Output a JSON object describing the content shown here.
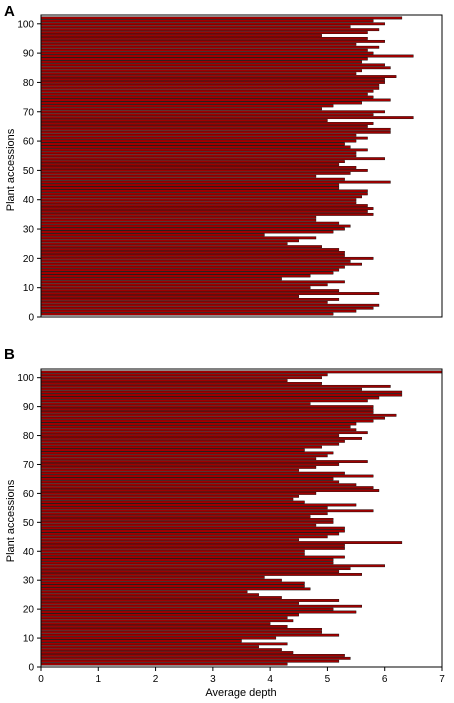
{
  "chart_data": [
    {
      "panel_label": "A",
      "type": "bar",
      "orientation": "horizontal",
      "ylabel": "Plant accessions",
      "xlabel": "",
      "xlim": [
        0,
        7
      ],
      "ylim": [
        0,
        103
      ],
      "xticks_shown": false,
      "yticks": [
        0,
        10,
        20,
        30,
        40,
        50,
        60,
        70,
        80,
        90,
        100
      ],
      "bar_color": "#a00000",
      "categories": [
        1,
        2,
        3,
        4,
        5,
        6,
        7,
        8,
        9,
        10,
        11,
        12,
        13,
        14,
        15,
        16,
        17,
        18,
        19,
        20,
        21,
        22,
        23,
        24,
        25,
        26,
        27,
        28,
        29,
        30,
        31,
        32,
        33,
        34,
        35,
        36,
        37,
        38,
        39,
        40,
        41,
        42,
        43,
        44,
        45,
        46,
        47,
        48,
        49,
        50,
        51,
        52,
        53,
        54,
        55,
        56,
        57,
        58,
        59,
        60,
        61,
        62,
        63,
        64,
        65,
        66,
        67,
        68,
        69,
        70,
        71,
        72,
        73,
        74,
        75,
        76,
        77,
        78,
        79,
        80,
        81,
        82,
        83,
        84,
        85,
        86,
        87,
        88,
        89,
        90,
        91,
        92,
        93,
        94,
        95,
        96,
        97,
        98,
        99,
        100,
        101,
        102
      ],
      "values": [
        5.1,
        5.5,
        5.8,
        5.9,
        5.0,
        5.2,
        4.5,
        5.9,
        5.2,
        4.7,
        5.0,
        5.3,
        4.2,
        4.7,
        5.1,
        5.2,
        5.3,
        5.6,
        5.4,
        5.8,
        5.3,
        5.3,
        5.2,
        4.9,
        4.3,
        4.5,
        4.8,
        3.9,
        5.1,
        5.3,
        5.4,
        5.2,
        4.8,
        4.8,
        5.8,
        5.7,
        5.8,
        5.7,
        5.5,
        5.5,
        5.6,
        5.7,
        5.7,
        5.2,
        5.2,
        6.1,
        5.3,
        4.8,
        5.4,
        5.7,
        5.5,
        5.2,
        5.3,
        6.0,
        5.5,
        5.5,
        5.7,
        5.4,
        5.3,
        5.5,
        5.7,
        5.5,
        6.1,
        6.1,
        5.7,
        5.8,
        5.0,
        6.5,
        5.8,
        6.0,
        4.9,
        5.1,
        5.6,
        6.1,
        5.8,
        5.7,
        5.8,
        5.9,
        5.9,
        6.0,
        6.0,
        6.2,
        5.5,
        5.6,
        6.1,
        6.0,
        5.6,
        5.7,
        6.5,
        5.8,
        5.7,
        5.9,
        5.5,
        6.0,
        5.7,
        4.9,
        5.7,
        5.9,
        5.4,
        6.0,
        5.8,
        6.3
      ]
    },
    {
      "panel_label": "B",
      "type": "bar",
      "orientation": "horizontal",
      "ylabel": "Plant accessions",
      "xlabel": "Average depth",
      "xlim": [
        0,
        7
      ],
      "ylim": [
        0,
        103
      ],
      "xticks": [
        0,
        1,
        2,
        3,
        4,
        5,
        6,
        7
      ],
      "yticks": [
        0,
        10,
        20,
        30,
        40,
        50,
        60,
        70,
        80,
        90,
        100
      ],
      "bar_color": "#a00000",
      "categories": [
        1,
        2,
        3,
        4,
        5,
        6,
        7,
        8,
        9,
        10,
        11,
        12,
        13,
        14,
        15,
        16,
        17,
        18,
        19,
        20,
        21,
        22,
        23,
        24,
        25,
        26,
        27,
        28,
        29,
        30,
        31,
        32,
        33,
        34,
        35,
        36,
        37,
        38,
        39,
        40,
        41,
        42,
        43,
        44,
        45,
        46,
        47,
        48,
        49,
        50,
        51,
        52,
        53,
        54,
        55,
        56,
        57,
        58,
        59,
        60,
        61,
        62,
        63,
        64,
        65,
        66,
        67,
        68,
        69,
        70,
        71,
        72,
        73,
        74,
        75,
        76,
        77,
        78,
        79,
        80,
        81,
        82,
        83,
        84,
        85,
        86,
        87,
        88,
        89,
        90,
        91,
        92,
        93,
        94,
        95,
        96,
        97,
        98,
        99,
        100,
        101,
        102
      ],
      "values": [
        4.3,
        5.2,
        5.4,
        5.3,
        4.4,
        4.2,
        3.8,
        4.3,
        3.5,
        4.1,
        5.2,
        4.9,
        4.9,
        4.3,
        4.0,
        4.4,
        4.3,
        4.5,
        5.5,
        5.1,
        5.6,
        4.5,
        5.2,
        4.2,
        3.8,
        3.6,
        4.7,
        4.6,
        4.6,
        4.2,
        3.9,
        5.6,
        5.2,
        5.4,
        6.0,
        5.1,
        5.1,
        5.3,
        4.6,
        4.6,
        5.3,
        5.3,
        6.3,
        4.5,
        5.0,
        5.2,
        5.3,
        5.3,
        4.8,
        5.1,
        5.1,
        4.7,
        5.0,
        5.8,
        5.0,
        5.5,
        4.6,
        4.4,
        4.5,
        4.8,
        5.9,
        5.8,
        5.5,
        5.2,
        5.1,
        5.8,
        5.3,
        4.5,
        4.8,
        5.2,
        5.7,
        4.8,
        5.0,
        5.1,
        4.6,
        4.9,
        5.2,
        5.3,
        5.6,
        5.2,
        5.7,
        5.5,
        5.4,
        5.5,
        5.8,
        6.0,
        6.2,
        5.8,
        5.8,
        5.8,
        4.7,
        5.7,
        5.9,
        6.3,
        6.3,
        5.6,
        6.1,
        4.9,
        4.3,
        4.9,
        5.0,
        7.0
      ]
    }
  ]
}
